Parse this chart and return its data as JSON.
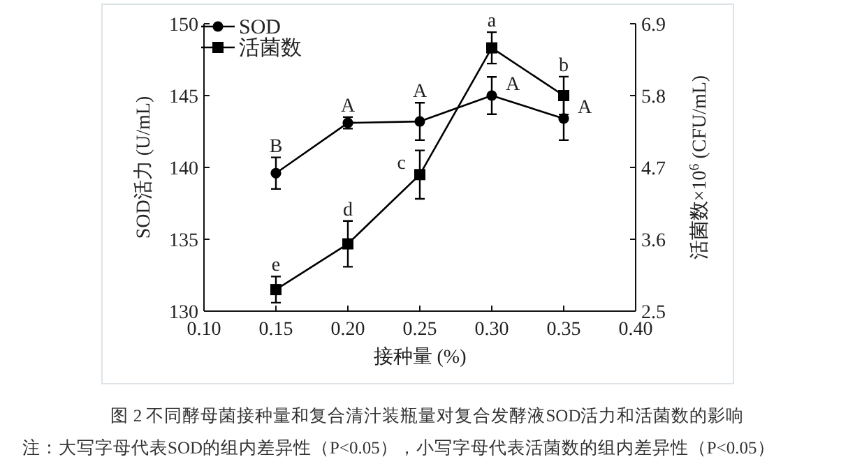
{
  "chart_data": {
    "type": "line",
    "title": "图 2 不同酵母菌接种量和复合清汁装瓶量对复合发酵液SOD活力和活菌数的影响",
    "xlabel": "接种量 (%)",
    "ylabel": "SOD活力 (U/mL)",
    "y2label": "活菌数×10$^{6}$ (CFU/mL)",
    "x": [
      0.15,
      0.2,
      0.25,
      0.3,
      0.35
    ],
    "xlim": [
      0.1,
      0.4
    ],
    "xticks": [
      {
        "value": 0.1,
        "label": "0.10"
      },
      0.15,
      {
        "value": 0.2,
        "label": "0.20"
      },
      0.25,
      {
        "value": 0.3,
        "label": "0.30"
      },
      0.35,
      {
        "value": 0.4,
        "label": "0.40"
      }
    ],
    "ylim": [
      130,
      150
    ],
    "yticks": [
      130,
      135,
      140,
      145,
      150
    ],
    "y2lim": [
      2.5,
      6.9
    ],
    "y2ticks": [
      2.5,
      3.6,
      4.7,
      5.8,
      6.9
    ],
    "grid": false,
    "legend": "top left",
    "line_style": "solid",
    "series": [
      {
        "name": "SOD",
        "color": "#000000",
        "marker": "circle",
        "values": [
          139.6,
          143.1,
          143.2,
          145.0,
          143.4
        ],
        "errors": [
          1.1,
          0.4,
          1.3,
          1.3,
          1.5
        ]
      },
      {
        "name": "活菌数",
        "color": "#000000",
        "marker": "square",
        "axis": "y2",
        "values": [
          2.83,
          3.53,
          4.59,
          6.53,
          5.8
        ],
        "errors": [
          0.2,
          0.35,
          0.37,
          0.24,
          0.29
        ]
      }
    ],
    "annotations": [
      {
        "text": "B",
        "x": 0.15,
        "y": 139.6
      },
      {
        "text": "A",
        "x": 0.2,
        "y": 143.1
      },
      {
        "text": "A",
        "x": 0.25,
        "y": 143.2
      },
      {
        "text": "A",
        "x": 0.3,
        "y": 145.0
      },
      {
        "text": "A",
        "x": 0.35,
        "y": 143.4
      },
      {
        "text": "e",
        "x": 0.15,
        "y": 131.5
      },
      {
        "text": "d",
        "x": 0.2,
        "y": 134.7
      },
      {
        "text": "c",
        "x": 0.25,
        "y": 139.5
      },
      {
        "text": "a",
        "x": 0.3,
        "y": 148.3
      },
      {
        "text": "b",
        "x": 0.35,
        "y": 145.0
      },
      "注：大写字母代表SOD的组内差异性（P<0.05），小写字母代表活菌数的组内差异性（P<0.05）"
    ]
  }
}
